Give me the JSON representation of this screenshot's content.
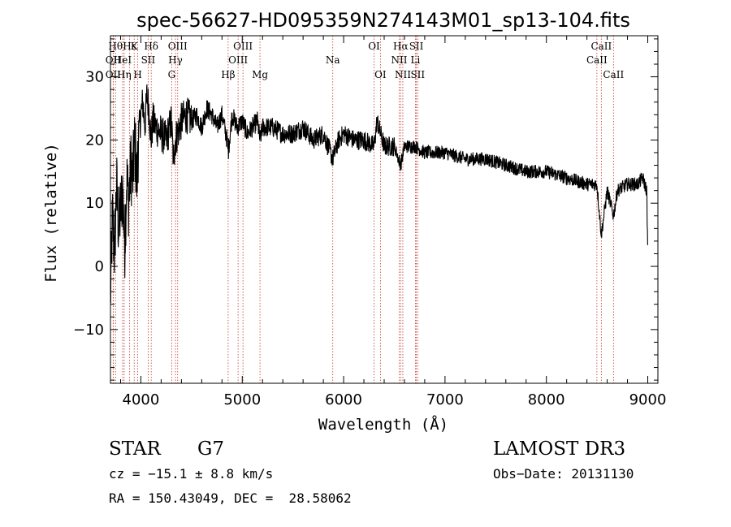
{
  "chart_data": {
    "type": "line",
    "title": "spec-56627-HD095359N274143M01_sp13-104.fits",
    "xlabel": "Wavelength (Å)",
    "ylabel": "Flux (relative)",
    "xlim": [
      3700,
      9100
    ],
    "ylim": [
      -18.5,
      36.5
    ],
    "x_ticks": [
      4000,
      5000,
      6000,
      7000,
      8000,
      9000
    ],
    "x_tick_labels": [
      "4000",
      "5000",
      "6000",
      "7000",
      "8000",
      "9000"
    ],
    "y_ticks": [
      -10,
      0,
      10,
      20,
      30
    ],
    "y_tick_labels": [
      "−10",
      "0",
      "10",
      "20",
      "30"
    ],
    "spectrum": {
      "x": [
        3700,
        3720,
        3740,
        3760,
        3780,
        3800,
        3820,
        3840,
        3860,
        3880,
        3900,
        3920,
        3940,
        3960,
        3970,
        3980,
        4000,
        4020,
        4040,
        4060,
        4080,
        4100,
        4120,
        4150,
        4200,
        4250,
        4300,
        4320,
        4340,
        4360,
        4400,
        4450,
        4500,
        4550,
        4600,
        4650,
        4700,
        4750,
        4800,
        4850,
        4861,
        4900,
        4950,
        5000,
        5050,
        5100,
        5150,
        5175,
        5200,
        5300,
        5400,
        5500,
        5600,
        5700,
        5800,
        5893,
        5950,
        6000,
        6100,
        6200,
        6300,
        6330,
        6400,
        6500,
        6563,
        6600,
        6700,
        6800,
        6900,
        7000,
        7200,
        7400,
        7600,
        7800,
        8000,
        8200,
        8400,
        8498,
        8542,
        8600,
        8662,
        8700,
        8800,
        8900,
        8950,
        8990,
        9000
      ],
      "y": [
        -5,
        8,
        2,
        13,
        6,
        9,
        12,
        3,
        14,
        10,
        16,
        14,
        20,
        13,
        18,
        21,
        24,
        26,
        22,
        27,
        25,
        20,
        23,
        22,
        21,
        20,
        23,
        17,
        20,
        21,
        23,
        24,
        23,
        24,
        22,
        25,
        24,
        22,
        24,
        20,
        18,
        24,
        22,
        23,
        21,
        22,
        23,
        20,
        22,
        22,
        21,
        21,
        22,
        20,
        21,
        17,
        20,
        21,
        20,
        20,
        19,
        23,
        19,
        19,
        16,
        19,
        19,
        18,
        18,
        18,
        17,
        17,
        16,
        15,
        15,
        14,
        13,
        13,
        5,
        12,
        8,
        12,
        13,
        13,
        14,
        12,
        2
      ]
    },
    "lines": [
      {
        "name": "OII",
        "x": 3727,
        "row": 1
      },
      {
        "name": "OII",
        "x": 3727,
        "row": 2
      },
      {
        "name": "Hθ",
        "x": 3750,
        "row": 0
      },
      {
        "name": "Hη",
        "x": 3835,
        "row": 2
      },
      {
        "name": "HeI",
        "x": 3820,
        "row": 1
      },
      {
        "name": "Hε",
        "x": 3889,
        "row": 0
      },
      {
        "name": "K",
        "x": 3934,
        "row": 0
      },
      {
        "name": "H",
        "x": 3969,
        "row": 2
      },
      {
        "name": "SII",
        "x": 4072,
        "row": 1
      },
      {
        "name": "Hδ",
        "x": 4102,
        "row": 0
      },
      {
        "name": "OIII",
        "x": 4363,
        "row": 0
      },
      {
        "name": "Hγ",
        "x": 4341,
        "row": 1
      },
      {
        "name": "G",
        "x": 4304,
        "row": 2
      },
      {
        "name": "Hβ",
        "x": 4861,
        "row": 2
      },
      {
        "name": "OIII",
        "x": 5007,
        "row": 0
      },
      {
        "name": "OIII",
        "x": 4959,
        "row": 1
      },
      {
        "name": "Mg",
        "x": 5175,
        "row": 2
      },
      {
        "name": "Na",
        "x": 5893,
        "row": 1
      },
      {
        "name": "OI",
        "x": 6300,
        "row": 0
      },
      {
        "name": "OI",
        "x": 6363,
        "row": 2
      },
      {
        "name": "Hα",
        "x": 6563,
        "row": 0
      },
      {
        "name": "NII",
        "x": 6548,
        "row": 1
      },
      {
        "name": "NII",
        "x": 6584,
        "row": 2
      },
      {
        "name": "SII",
        "x": 6717,
        "row": 0
      },
      {
        "name": "Li",
        "x": 6708,
        "row": 1
      },
      {
        "name": "SII",
        "x": 6731,
        "row": 2
      },
      {
        "name": "CaII",
        "x": 8542,
        "row": 0
      },
      {
        "name": "CaII",
        "x": 8498,
        "row": 1
      },
      {
        "name": "CaII",
        "x": 8662,
        "row": 2
      }
    ],
    "colors": {
      "spectrum": "#000000",
      "lines": "#c0392b"
    }
  },
  "info": {
    "object_type": "STAR",
    "subclass": "G7",
    "survey": "LAMOST DR3",
    "cz": "cz = −15.1 ± 8.8 km/s",
    "obs_date": "Obs−Date: 20131130",
    "coords": "RA = 150.43049, DEC =  28.58062"
  }
}
